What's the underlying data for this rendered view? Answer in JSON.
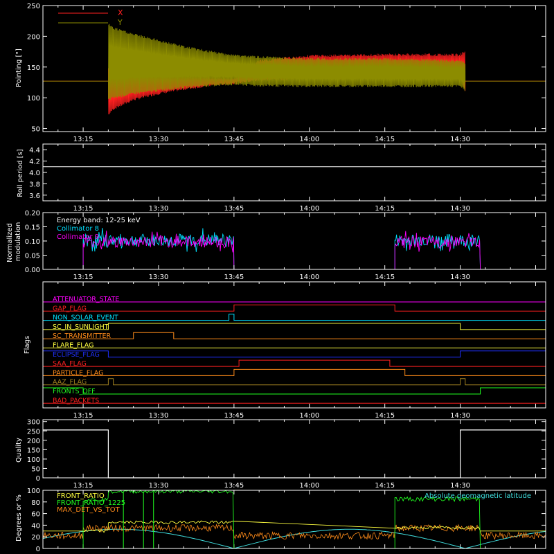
{
  "colors": {
    "background": "#000000",
    "axes": "#ffffff",
    "red": "#ff2020",
    "olive": "#8c8c00",
    "cyan": "#00e0ff",
    "magenta": "#ff00ff",
    "green": "#20ff20",
    "yellow": "#ffff40",
    "orange": "#ff8c1a",
    "blue": "#2030ff",
    "light_cyan": "#40e0e0",
    "brown": "#a08020"
  },
  "time_ticks": [
    "13:15",
    "13:30",
    "13:45",
    "14:00",
    "14:15",
    "14:30"
  ],
  "chart_data": [
    {
      "id": "pointing",
      "type": "line",
      "ylabel": "Pointing [\"]",
      "ylim": [
        45,
        250
      ],
      "yticks": [
        "50",
        "100",
        "150",
        "200",
        "250"
      ],
      "series": [
        {
          "name": "X",
          "color": "#ff2020",
          "baseline": 127,
          "envelope_t": [
            "13:20",
            "13:21",
            "13:25",
            "13:30",
            "13:35",
            "13:40",
            "13:45",
            "13:50",
            "14:00",
            "14:15",
            "14:30",
            "14:31"
          ],
          "lower": [
            70,
            80,
            95,
            105,
            112,
            118,
            122,
            127,
            130,
            130,
            130,
            110
          ],
          "upper": [
            150,
            148,
            145,
            140,
            137,
            135,
            133,
            162,
            170,
            172,
            172,
            178
          ]
        },
        {
          "name": "Y",
          "color": "#8c8c00",
          "baseline": 127,
          "envelope_t": [
            "13:20",
            "13:21",
            "13:25",
            "13:30",
            "13:35",
            "13:40",
            "13:45",
            "13:50",
            "14:00",
            "14:15",
            "14:30",
            "14:31"
          ],
          "lower": [
            95,
            98,
            105,
            110,
            115,
            118,
            120,
            118,
            117,
            117,
            117,
            110
          ],
          "upper": [
            222,
            215,
            205,
            195,
            185,
            177,
            171,
            168,
            165,
            165,
            162,
            158
          ]
        }
      ],
      "legend": [
        {
          "label": "X",
          "color": "#ff2020"
        },
        {
          "label": "Y",
          "color": "#8c8c00"
        }
      ]
    },
    {
      "id": "roll",
      "type": "line",
      "ylabel": "Roll period [s]",
      "ylim": [
        3.5,
        4.5
      ],
      "yticks": [
        "3.6",
        "3.8",
        "4.0",
        "4.2",
        "4.4"
      ],
      "series": [
        {
          "name": "",
          "color": "#ffffff",
          "x": [
            "13:07",
            "14:47"
          ],
          "y": [
            4.1,
            4.1
          ]
        }
      ]
    },
    {
      "id": "modulation",
      "type": "line",
      "ylabel": "Normalized modulation",
      "ylim": [
        0,
        0.2
      ],
      "yticks": [
        "0.00",
        "0.05",
        "0.10",
        "0.15",
        "0.20"
      ],
      "annotation": "Energy band: 12-25 keV",
      "active_intervals": [
        [
          "13:15",
          "13:45"
        ],
        [
          "14:17",
          "14:34"
        ]
      ],
      "series": [
        {
          "name": "Collimator 8",
          "color": "#00e0ff",
          "base": 0.1,
          "spread": 0.045
        },
        {
          "name": "Collimator 9",
          "color": "#ff00ff",
          "base": 0.095,
          "spread": 0.04
        }
      ]
    },
    {
      "id": "flags",
      "type": "step",
      "ylabel": "Flags",
      "flags": [
        {
          "name": "ATTENUATOR_STATE",
          "color": "#ff00ff",
          "highs": []
        },
        {
          "name": "GAP_FLAG",
          "color": "#ff2020",
          "highs": [
            [
              "13:45",
              "14:17"
            ]
          ]
        },
        {
          "name": "NON_SOLAR_EVENT",
          "color": "#00e0ff",
          "highs": [
            [
              "13:44",
              "13:45"
            ]
          ]
        },
        {
          "name": "SC_IN_SUNLIGHT",
          "color": "#ffff40",
          "highs": [
            [
              "13:20",
              "14:30"
            ]
          ]
        },
        {
          "name": "SC_TRANSMITTER",
          "color": "#ff8c1a",
          "highs": [
            [
              "13:25",
              "13:33"
            ]
          ]
        },
        {
          "name": "FLARE_FLAG",
          "color": "#ffff40",
          "highs": []
        },
        {
          "name": "ECLIPSE_FLAG",
          "color": "#2030ff",
          "highs": [
            [
              "13:07",
              "13:20"
            ],
            [
              "14:30",
              "14:47"
            ]
          ]
        },
        {
          "name": "SAA_FLAG",
          "color": "#ff2020",
          "highs": [
            [
              "13:46",
              "14:16"
            ]
          ]
        },
        {
          "name": "PARTICLE_FLAG",
          "color": "#ff8c1a",
          "highs": [
            [
              "13:45",
              "14:19"
            ]
          ]
        },
        {
          "name": "AAZ_FLAG",
          "color": "#a08020",
          "highs": [
            [
              "13:20",
              "13:21"
            ],
            [
              "14:30",
              "14:31"
            ]
          ]
        },
        {
          "name": "FRONTS_OFF",
          "color": "#20ff20",
          "highs": [
            [
              "13:07",
              "13:15"
            ],
            [
              "14:34",
              "14:47"
            ]
          ]
        },
        {
          "name": "BAD_PACKETS",
          "color": "#ff2020",
          "highs": []
        }
      ]
    },
    {
      "id": "quality",
      "type": "step",
      "ylabel": "Quality",
      "ylim": [
        0,
        310
      ],
      "yticks": [
        "0",
        "50",
        "100",
        "150",
        "200",
        "250",
        "300"
      ],
      "series": [
        {
          "name": "",
          "color": "#ffffff",
          "x": [
            "13:07",
            "13:20",
            "13:20",
            "14:30",
            "14:30",
            "14:47"
          ],
          "y": [
            255,
            255,
            0,
            0,
            255,
            255
          ]
        }
      ]
    },
    {
      "id": "ratios",
      "type": "line",
      "ylabel": "Degrees or %",
      "ylim": [
        0,
        100
      ],
      "yticks": [
        "0",
        "20",
        "40",
        "60",
        "80",
        "100"
      ],
      "series": [
        {
          "name": "FRONT_RATIO",
          "color": "#ffff40"
        },
        {
          "name": "FRONT_RATIO_1225",
          "color": "#20ff20"
        },
        {
          "name": "MAX_DET_VS_TOT",
          "color": "#ff8c1a"
        },
        {
          "name": "Absolute geomagnetic latitude",
          "color": "#40e0e0"
        }
      ]
    }
  ]
}
